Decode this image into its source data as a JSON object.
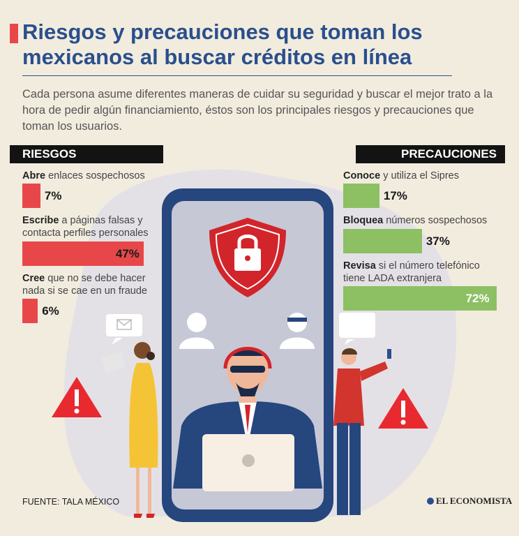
{
  "title": "Riesgos y precauciones que toman los mexicanos al buscar créditos en línea",
  "subtitle": "Cada persona asume diferentes maneras de cuidar su seguridad y buscar el mejor trato a la hora de pedir algún financiamiento, éstos son los principales riesgos y precauciones que toman los usuarios.",
  "riesgos_header": "RIESGOS",
  "precauciones_header": "PRECAUCIONES",
  "source": "FUENTE: TALA MÉXICO",
  "logo": "EL ECONOMISTA",
  "colors": {
    "riesgos": "#e8474a",
    "precauciones": "#8dc063",
    "title": "#2a4f8c"
  },
  "chart_data": [
    {
      "type": "bar",
      "group": "RIESGOS",
      "items": [
        {
          "bold": "Abre",
          "rest": " enlaces sospechosos",
          "value": 7,
          "label": "7%"
        },
        {
          "bold": "Escribe",
          "rest": " a páginas falsas y contacta perfiles personales",
          "value": 47,
          "label": "47%"
        },
        {
          "bold": "Cree",
          "rest": " que no se debe hacer nada si se cae en un fraude",
          "value": 6,
          "label": "6%"
        }
      ]
    },
    {
      "type": "bar",
      "group": "PRECAUCIONES",
      "items": [
        {
          "bold": "Conoce",
          "rest": " y utiliza el Sipres",
          "value": 17,
          "label": "17%"
        },
        {
          "bold": "Bloquea",
          "rest": " números sospechosos",
          "value": 37,
          "label": "37%"
        },
        {
          "bold": "Revisa",
          "rest": " si el número telefónico tiene LADA extranjera",
          "value": 72,
          "label": "72%"
        }
      ]
    }
  ]
}
